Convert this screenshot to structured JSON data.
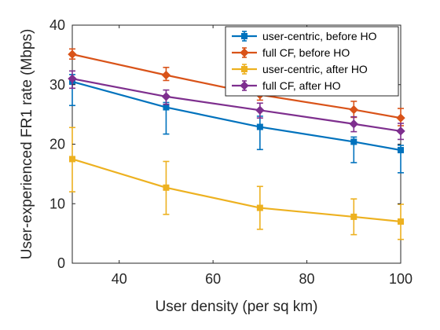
{
  "chart_data": {
    "type": "line",
    "xlabel": "User density (per sq km)",
    "ylabel": "User-experienced FR1 rate (Mbps)",
    "xlim": [
      30,
      100
    ],
    "ylim": [
      0,
      40
    ],
    "xticks": [
      40,
      60,
      80,
      100
    ],
    "yticks": [
      0,
      10,
      20,
      30,
      40
    ],
    "grid": false,
    "legend_position": "top-right",
    "x": [
      30,
      50,
      70,
      90,
      100
    ],
    "series": [
      {
        "name": "user-centric, before HO",
        "color": "#0072BD",
        "marker": "square",
        "values": [
          30.5,
          26.2,
          22.9,
          20.4,
          19.0
        ],
        "lower_err": [
          4.0,
          4.5,
          3.8,
          3.5,
          3.8
        ],
        "upper_err": [
          1.2,
          0.8,
          1.8,
          0.8,
          0.8
        ]
      },
      {
        "name": "full CF, before HO",
        "color": "#D95319",
        "marker": "diamond",
        "values": [
          35.1,
          31.6,
          28.3,
          25.8,
          24.4
        ],
        "lower_err": [
          0.8,
          0.9,
          0.9,
          1.3,
          1.3
        ],
        "upper_err": [
          0.9,
          1.3,
          1.3,
          1.4,
          1.6
        ]
      },
      {
        "name": "user-centric, after HO",
        "color": "#EDB120",
        "marker": "square",
        "values": [
          17.5,
          12.7,
          9.3,
          7.8,
          7.0
        ],
        "lower_err": [
          5.5,
          4.5,
          3.6,
          3.0,
          3.0
        ],
        "upper_err": [
          5.3,
          4.4,
          3.6,
          3.0,
          2.9
        ]
      },
      {
        "name": "full CF, after HO",
        "color": "#7E2F8E",
        "marker": "diamond",
        "values": [
          31.0,
          28.0,
          25.7,
          23.4,
          22.2
        ],
        "lower_err": [
          1.6,
          1.3,
          1.3,
          1.3,
          1.4
        ],
        "upper_err": [
          1.3,
          1.1,
          1.2,
          1.2,
          1.3
        ]
      }
    ]
  }
}
